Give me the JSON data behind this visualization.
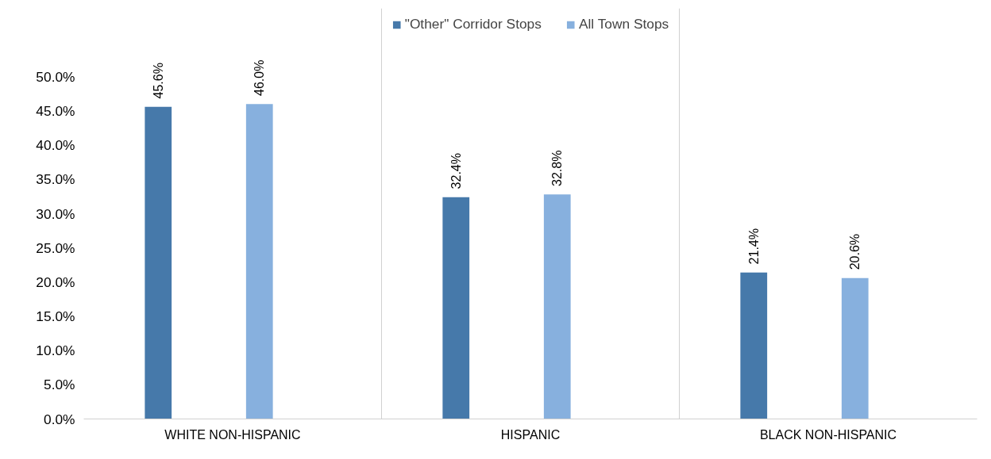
{
  "chart_data": {
    "type": "bar",
    "categories": [
      "WHITE NON-HISPANIC",
      "HISPANIC",
      "BLACK NON-HISPANIC"
    ],
    "series": [
      {
        "name": "\"Other\" Corridor Stops",
        "color": "#4679aa",
        "values": [
          45.6,
          32.4,
          21.4
        ],
        "value_labels": [
          "45.6%",
          "32.4%",
          "21.4%"
        ]
      },
      {
        "name": "All Town Stops",
        "color": "#87b0de",
        "values": [
          46.0,
          32.8,
          20.6
        ],
        "value_labels": [
          "46.0%",
          "32.8%",
          "20.6%"
        ]
      }
    ],
    "ylim": [
      0,
      60
    ],
    "yticks": [
      {
        "value": 0,
        "label": "0.0%"
      },
      {
        "value": 5,
        "label": "5.0%"
      },
      {
        "value": 10,
        "label": "10.0%"
      },
      {
        "value": 15,
        "label": "15.0%"
      },
      {
        "value": 20,
        "label": "20.0%"
      },
      {
        "value": 25,
        "label": "25.0%"
      },
      {
        "value": 30,
        "label": "30.0%"
      },
      {
        "value": 35,
        "label": "35.0%"
      },
      {
        "value": 40,
        "label": "40.0%"
      },
      {
        "value": 45,
        "label": "45.0%"
      },
      {
        "value": 50,
        "label": "50.0%"
      }
    ],
    "grid": "x",
    "legend": "top"
  }
}
